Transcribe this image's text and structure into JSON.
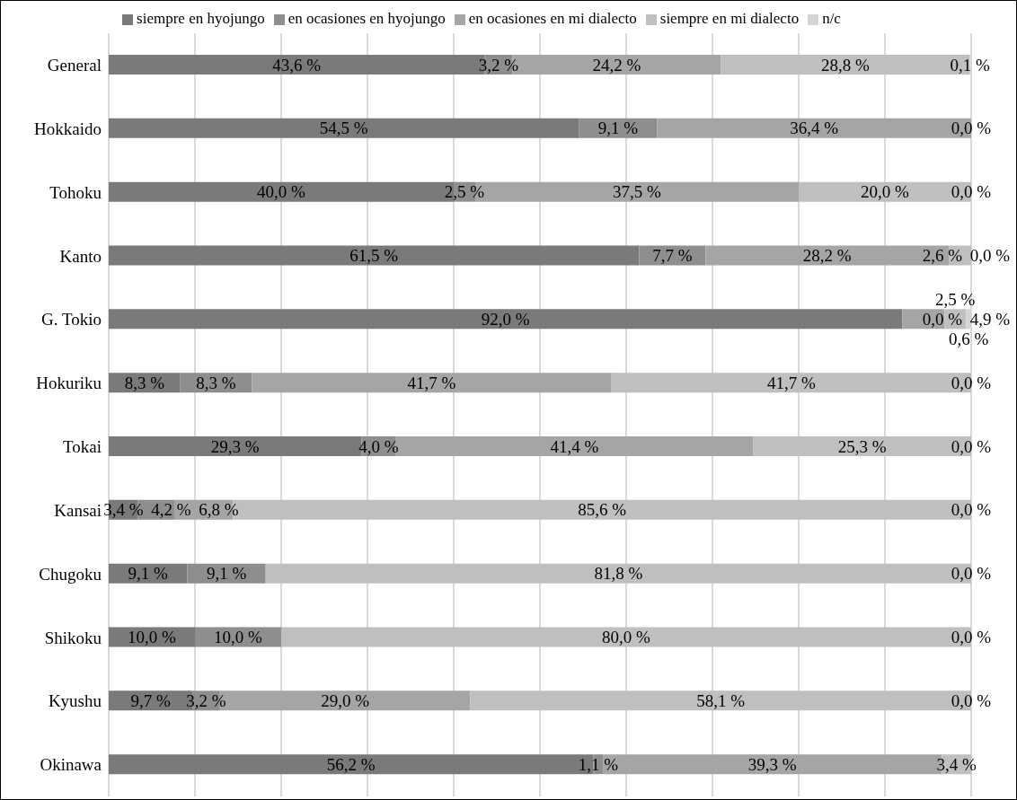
{
  "chart_data": {
    "type": "bar",
    "orientation": "horizontal",
    "stacked": true,
    "categories": [
      "General",
      "Hokkaido",
      "Tohoku",
      "Kanto",
      "G. Tokio",
      "Hokuriku",
      "Tokai",
      "Kansai",
      "Chugoku",
      "Shikoku",
      "Kyushu",
      "Okinawa"
    ],
    "series": [
      {
        "name": "siempre en hyojungo",
        "color": "#7a7a7a",
        "values": [
          43.6,
          54.5,
          40.0,
          61.5,
          92.0,
          8.3,
          29.3,
          3.4,
          9.1,
          10.0,
          9.7,
          56.2
        ],
        "value_labels": [
          "43,6 %",
          "54,5 %",
          "40,0 %",
          "61,5 %",
          "92,0 %",
          "8,3 %",
          "29,3 %",
          "3,4 %",
          "9,1 %",
          "10,0 %",
          "9,7 %",
          "56,2 %"
        ]
      },
      {
        "name": "en ocasiones en hyojungo",
        "color": "#8e8e8e",
        "values": [
          3.2,
          9.1,
          2.5,
          7.7,
          0.0,
          8.3,
          4.0,
          4.2,
          9.1,
          10.0,
          3.2,
          1.1
        ],
        "value_labels": [
          "3,2 %",
          "9,1 %",
          "2,5 %",
          "7,7 %",
          "0,0 %",
          "8,3 %",
          "4,0 %",
          "4,2 %",
          "9,1 %",
          "10,0 %",
          "3,2 %",
          "1,1 %"
        ]
      },
      {
        "name": "en ocasiones en mi dialecto",
        "color": "#a5a5a5",
        "values": [
          24.2,
          36.4,
          37.5,
          28.2,
          4.9,
          41.7,
          41.4,
          6.8,
          0.0,
          0.0,
          29.0,
          39.3
        ],
        "value_labels": [
          "24,2 %",
          "36,4 %",
          "37,5 %",
          "28,2 %",
          "4,9 %",
          "41,7 %",
          "41,4 %",
          "6,8 %",
          null,
          null,
          "29,0 %",
          "39,3 %"
        ]
      },
      {
        "name": "siempre en mi dialecto",
        "color": "#bfbfbf",
        "values": [
          28.8,
          0.0,
          20.0,
          2.6,
          2.5,
          41.7,
          25.3,
          85.6,
          81.8,
          80.0,
          58.1,
          3.4
        ],
        "value_labels": [
          "28,8 %",
          null,
          "20,0 %",
          "2,6 %",
          "2,5 %",
          "41,7 %",
          "25,3 %",
          "85,6 %",
          "81,8 %",
          "80,0 %",
          "58,1 %",
          "3,4 %"
        ]
      },
      {
        "name": "n/c",
        "color": "#d4d4d4",
        "values": [
          0.1,
          0.0,
          0.0,
          0.0,
          0.6,
          0.0,
          0.0,
          0.0,
          0.0,
          0.0,
          0.0,
          null
        ],
        "value_labels": [
          "0,1 %",
          "0,0 %",
          "0,0 %",
          "0,0 %",
          "0,6 %",
          "0,0 %",
          "0,0 %",
          "0,0 %",
          "0,0 %",
          "0,0 %",
          "0,0 %",
          null
        ]
      }
    ],
    "xlim": [
      0,
      100
    ],
    "xticks": [
      0,
      10,
      20,
      30,
      40,
      50,
      60,
      70,
      80,
      90,
      100
    ],
    "tick_labels": "y",
    "grid": "x",
    "legend": "top"
  }
}
